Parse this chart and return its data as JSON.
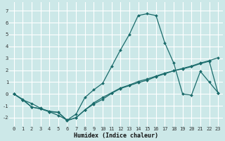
{
  "xlabel": "Humidex (Indice chaleur)",
  "xlim": [
    -0.5,
    23.5
  ],
  "ylim": [
    -2.7,
    7.7
  ],
  "yticks": [
    -2,
    -1,
    0,
    1,
    2,
    3,
    4,
    5,
    6,
    7
  ],
  "xticks": [
    0,
    1,
    2,
    3,
    4,
    5,
    6,
    7,
    8,
    9,
    10,
    11,
    12,
    13,
    14,
    15,
    16,
    17,
    18,
    19,
    20,
    21,
    22,
    23
  ],
  "bg_color": "#cce8e8",
  "grid_color": "#ffffff",
  "line_color": "#1a6b6b",
  "line1_y": [
    0.0,
    -0.5,
    -0.8,
    -1.2,
    -1.5,
    -1.8,
    -2.2,
    -1.7,
    -0.3,
    0.35,
    0.9,
    2.3,
    3.7,
    5.0,
    6.6,
    6.75,
    6.6,
    4.3,
    2.6,
    0.0,
    -0.1,
    1.9,
    1.0,
    0.1
  ],
  "line2_y": [
    0.0,
    -0.5,
    -1.1,
    -1.25,
    -1.5,
    -1.55,
    -2.25,
    -2.0,
    -1.35,
    -0.85,
    -0.45,
    0.05,
    0.45,
    0.7,
    0.95,
    1.15,
    1.45,
    1.7,
    1.95,
    2.15,
    2.35,
    2.6,
    2.8,
    3.05
  ],
  "line3_y": [
    0.0,
    -0.45,
    -1.1,
    -1.25,
    -1.45,
    -1.55,
    -2.2,
    -2.0,
    -1.35,
    -0.75,
    -0.3,
    0.1,
    0.5,
    0.75,
    1.05,
    1.25,
    1.5,
    1.75,
    1.95,
    2.1,
    2.3,
    2.55,
    2.75,
    0.05
  ],
  "xlabel_fontsize": 6,
  "tick_fontsize": 5,
  "linewidth": 0.9,
  "markersize": 2.0
}
